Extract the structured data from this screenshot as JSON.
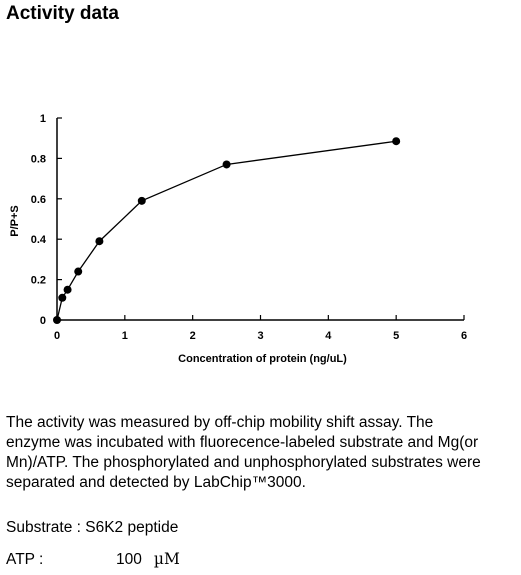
{
  "page_title": "Activity data",
  "chart_data": {
    "type": "line",
    "x": [
      0,
      0.078,
      0.156,
      0.313,
      0.625,
      1.25,
      2.5,
      5
    ],
    "y": [
      0,
      0.11,
      0.15,
      0.24,
      0.39,
      0.59,
      0.77,
      0.885
    ],
    "xlabel": "Concentration of protein (ng/uL)",
    "ylabel": "P/P+S",
    "xlim": [
      0,
      6
    ],
    "ylim": [
      0,
      1
    ],
    "xticks": [
      "0",
      "1",
      "2",
      "3",
      "4",
      "5",
      "6"
    ],
    "yticks": [
      "0",
      "0.2",
      "0.4",
      "0.6",
      "0.8",
      "1"
    ],
    "grid": false,
    "legend": "none",
    "line_color": "#000000",
    "marker_color": "#000000"
  },
  "description_lines": [
    "The activity was measured by off-chip mobility shift assay. The",
    "enzyme was incubated with fluorecence-labeled  substrate and Mg(or",
    "Mn)/ATP. The phosphorylated and unphosphorylated substrates were",
    "separated and detected by LabChip™3000."
  ],
  "substrate_text": "Substrate : S6K2 peptide",
  "atp": {
    "label": "ATP :",
    "value": "100",
    "unit": "µM"
  }
}
